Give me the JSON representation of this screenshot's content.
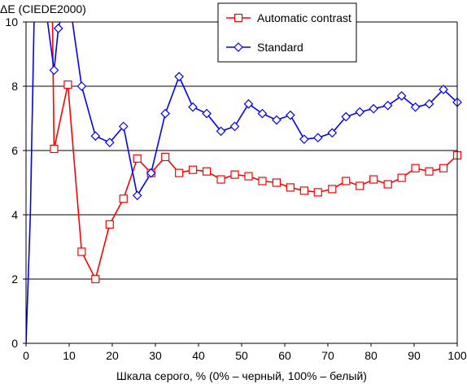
{
  "chart_data": {
    "type": "line",
    "ylabel": "ΔE (CIEDE2000)",
    "xlabel": "Шкала серого, % (0% – черный, 100% – белый)",
    "xlim": [
      0,
      100
    ],
    "ylim": [
      0,
      10
    ],
    "xticks": [
      0,
      10,
      20,
      30,
      40,
      50,
      60,
      70,
      80,
      90,
      100
    ],
    "yticks": [
      0,
      2,
      4,
      6,
      8,
      10
    ],
    "grid": "horizontal",
    "legend_position": "top-right",
    "series": [
      {
        "name": "Automatic contrast",
        "color": "#ff0000",
        "marker": "square",
        "x": [
          6.0,
          6.5,
          9.7,
          12.9,
          16.1,
          19.4,
          22.6,
          25.8,
          29.0,
          32.3,
          35.5,
          38.7,
          41.9,
          45.2,
          48.4,
          51.6,
          54.8,
          58.1,
          61.3,
          64.5,
          67.7,
          71.0,
          74.2,
          77.4,
          80.6,
          83.9,
          87.1,
          90.3,
          93.5,
          96.8,
          100
        ],
        "values": [
          11.5,
          6.05,
          8.05,
          2.85,
          2.0,
          3.7,
          4.5,
          5.75,
          5.3,
          5.8,
          5.3,
          5.4,
          5.35,
          5.1,
          5.25,
          5.2,
          5.05,
          5.0,
          4.85,
          4.75,
          4.7,
          4.8,
          5.05,
          4.9,
          5.1,
          4.95,
          5.15,
          5.45,
          5.35,
          5.45,
          5.85
        ]
      },
      {
        "name": "Standard",
        "color": "#0000ff",
        "marker": "diamond",
        "x": [
          0,
          1.0,
          2.0,
          4.0,
          6.5,
          7.5,
          9.7,
          12.9,
          16.1,
          19.4,
          22.6,
          25.8,
          29.0,
          32.3,
          35.5,
          38.7,
          41.9,
          45.2,
          48.4,
          51.6,
          54.8,
          58.1,
          61.3,
          64.5,
          67.7,
          71.0,
          74.2,
          77.4,
          80.6,
          83.9,
          87.1,
          90.3,
          93.5,
          96.8,
          100
        ],
        "values": [
          0,
          4.0,
          11.0,
          11.0,
          8.5,
          9.8,
          11.0,
          8.0,
          6.45,
          6.25,
          6.75,
          4.6,
          5.3,
          7.15,
          8.3,
          7.35,
          7.15,
          6.6,
          6.75,
          7.45,
          7.15,
          6.95,
          7.1,
          6.35,
          6.4,
          6.55,
          7.05,
          7.2,
          7.3,
          7.4,
          7.7,
          7.35,
          7.45,
          7.9,
          7.5
        ],
        "markers_from": 4
      }
    ]
  }
}
